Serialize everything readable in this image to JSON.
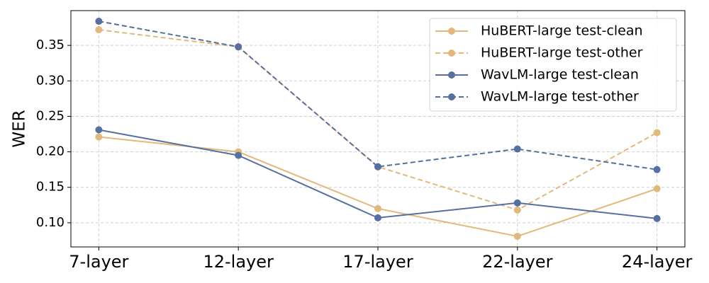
{
  "chart_data": {
    "type": "line",
    "ylabel": "WER",
    "categories": [
      "7-layer",
      "12-layer",
      "17-layer",
      "22-layer",
      "24-layer"
    ],
    "series": [
      {
        "name": "HuBERT-large test-clean",
        "color": "#e2b87d",
        "linestyle": "solid",
        "values": [
          0.221,
          0.2,
          0.12,
          0.081,
          0.148
        ]
      },
      {
        "name": "HuBERT-large test-other",
        "color": "#e2b87d",
        "linestyle": "dashed",
        "values": [
          0.372,
          0.348,
          0.179,
          0.118,
          0.227
        ]
      },
      {
        "name": "WavLM-large test-clean",
        "color": "#556fa0",
        "linestyle": "solid",
        "values": [
          0.231,
          0.195,
          0.107,
          0.128,
          0.106
        ]
      },
      {
        "name": "WavLM-large test-other",
        "color": "#556fa0",
        "linestyle": "dashed",
        "values": [
          0.384,
          0.348,
          0.179,
          0.204,
          0.175
        ]
      }
    ],
    "ylim": [
      0.066,
      0.399
    ],
    "yticks": [
      {
        "value": 0.1,
        "label": "0.10"
      },
      0.15,
      {
        "value": 0.2,
        "label": "0.20"
      },
      0.25,
      {
        "value": 0.3,
        "label": "0.30"
      },
      0.35
    ],
    "grid": true,
    "legend": "upper right"
  }
}
